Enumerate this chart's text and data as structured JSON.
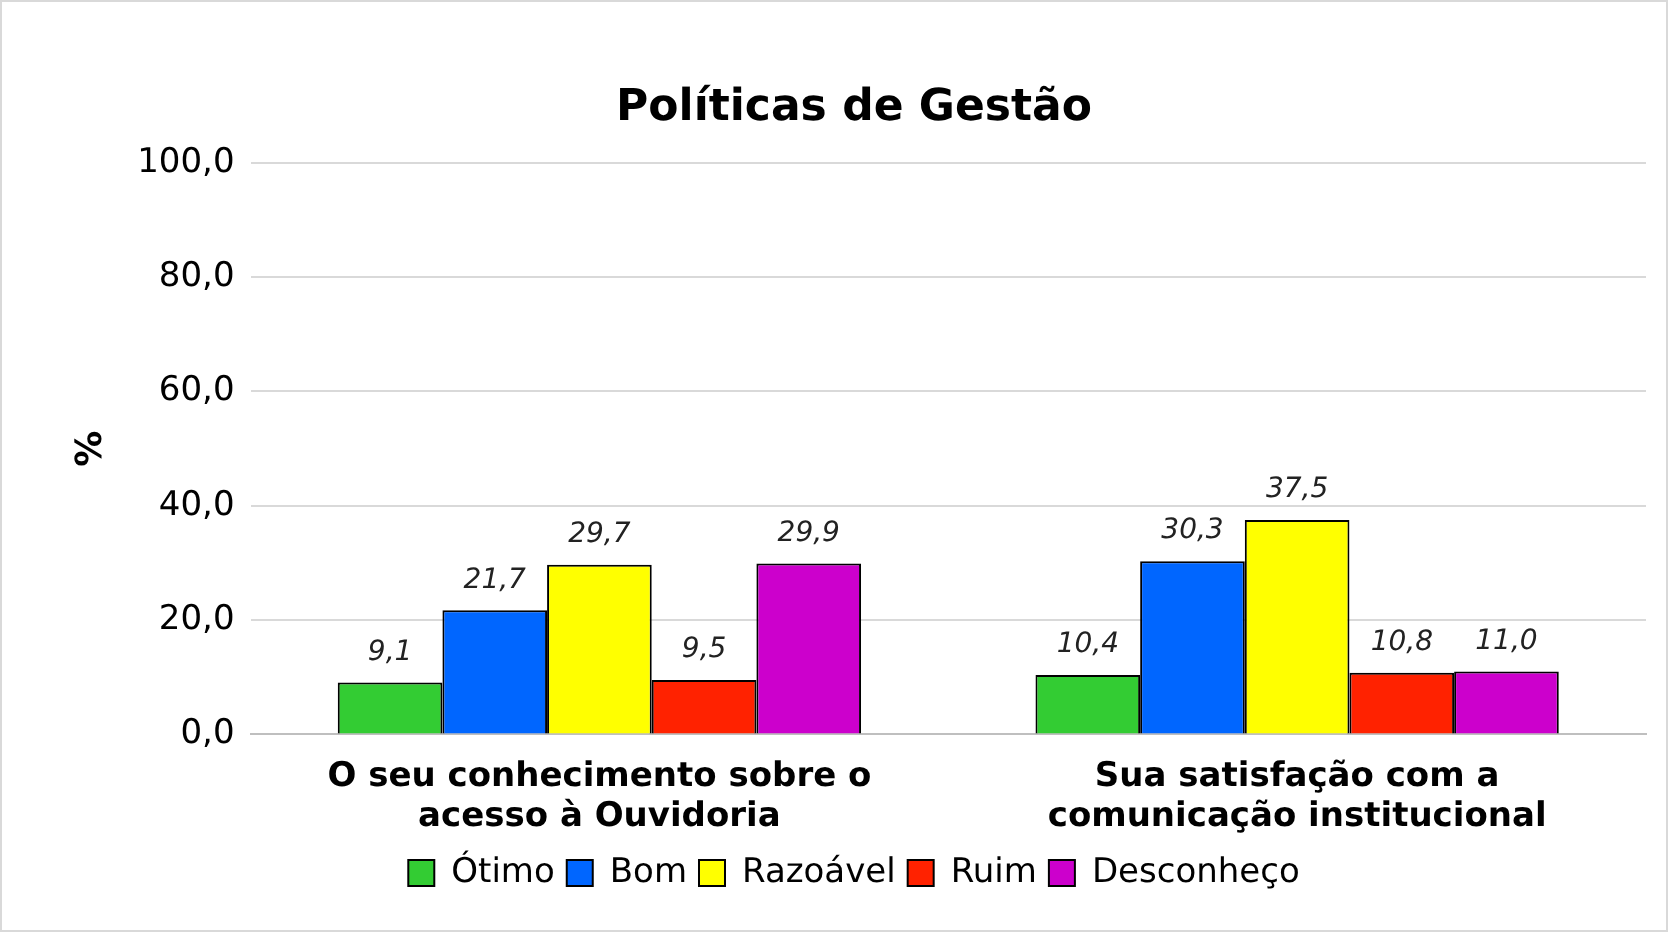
{
  "chart_data": {
    "type": "bar",
    "title": "Políticas de Gestão",
    "ylabel": "%",
    "categories": [
      "O seu conhecimento sobre o\nacesso à Ouvidoria",
      "Sua satisfação com a\ncomunicação institucional"
    ],
    "series": [
      {
        "name": "Ótimo",
        "color": "#33cc33",
        "values": [
          9.1,
          10.4
        ],
        "value_labels": [
          "9,1",
          "10,4"
        ]
      },
      {
        "name": "Bom",
        "color": "#0066ff",
        "values": [
          21.7,
          30.3
        ],
        "value_labels": [
          "21,7",
          "30,3"
        ]
      },
      {
        "name": "Razoável",
        "color": "#ffff00",
        "values": [
          29.7,
          37.5
        ],
        "value_labels": [
          "29,7",
          "37,5"
        ]
      },
      {
        "name": "Ruim",
        "color": "#ff2200",
        "values": [
          9.5,
          10.8
        ],
        "value_labels": [
          "9,5",
          "10,8"
        ]
      },
      {
        "name": "Desconheço",
        "color": "#cc00cc",
        "values": [
          29.9,
          11.0
        ],
        "value_labels": [
          "29,9",
          "11,0"
        ]
      }
    ],
    "ylim": [
      0,
      100
    ],
    "yticks": [
      {
        "value": 0,
        "label": "0,0"
      },
      {
        "value": 20,
        "label": "20,0"
      },
      {
        "value": 40,
        "label": "40,0"
      },
      {
        "value": 60,
        "label": "60,0"
      },
      {
        "value": 80,
        "label": "80,0"
      },
      {
        "value": 100,
        "label": "100,0"
      }
    ],
    "grid": "y",
    "legend": "bottom"
  }
}
